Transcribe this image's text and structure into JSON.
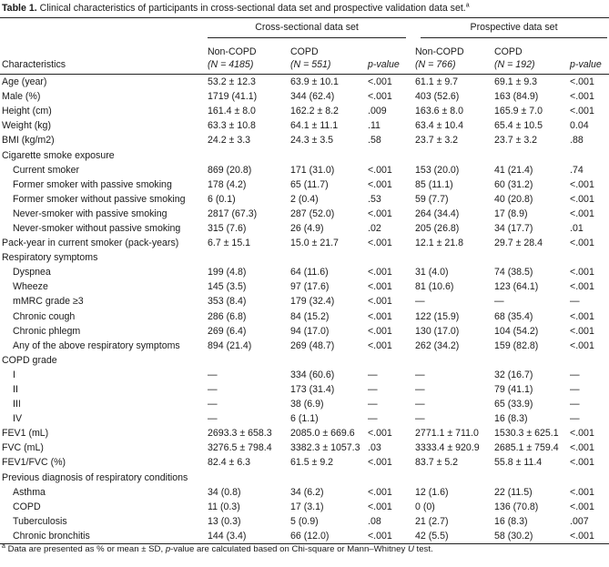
{
  "title": {
    "label": "Table 1.",
    "text": "Clinical characteristics of participants in cross-sectional data set and prospective validation data set.",
    "marker": "a"
  },
  "groups": {
    "cross": "Cross-sectional data set",
    "prospective": "Prospective data set"
  },
  "columns": {
    "characteristics": "Characteristics",
    "cs_noncopd": "Non-COPD",
    "cs_noncopd_n": "(N = 4185)",
    "cs_copd": "COPD",
    "cs_copd_n": "(N = 551)",
    "cs_p": "p-value",
    "pr_noncopd": "Non-COPD",
    "pr_noncopd_n": "(N = 766)",
    "pr_copd": "COPD",
    "pr_copd_n": "(N = 192)",
    "pr_p": "p-value"
  },
  "rows": [
    {
      "label": "Age (year)",
      "indent": false,
      "c": [
        "53.2 ± 12.3",
        "63.9 ± 10.1",
        "<.001",
        "61.1 ± 9.7",
        "69.1 ± 9.3",
        "<.001"
      ]
    },
    {
      "label": "Male (%)",
      "indent": false,
      "c": [
        "1719 (41.1)",
        "344 (62.4)",
        "<.001",
        "403 (52.6)",
        "163 (84.9)",
        "<.001"
      ]
    },
    {
      "label": "Height (cm)",
      "indent": false,
      "c": [
        "161.4 ± 8.0",
        "162.2 ± 8.2",
        ".009",
        "163.6 ± 8.0",
        "165.9 ± 7.0",
        "<.001"
      ]
    },
    {
      "label": "Weight (kg)",
      "indent": false,
      "c": [
        "63.3 ± 10.8",
        "64.1 ± 11.1",
        ".11",
        "63.4 ± 10.4",
        "65.4 ± 10.5",
        "0.04"
      ]
    },
    {
      "label": "BMI (kg/m2)",
      "indent": false,
      "c": [
        "24.2 ± 3.3",
        "24.3 ± 3.5",
        ".58",
        "23.7 ± 3.2",
        "23.7 ± 3.2",
        ".88"
      ]
    },
    {
      "label": "Cigarette smoke exposure",
      "indent": false,
      "c": [
        "",
        "",
        "",
        "",
        "",
        ""
      ]
    },
    {
      "label": "Current smoker",
      "indent": true,
      "c": [
        "869 (20.8)",
        "171 (31.0)",
        "<.001",
        "153 (20.0)",
        "41 (21.4)",
        ".74"
      ]
    },
    {
      "label": "Former smoker with passive smoking",
      "indent": true,
      "c": [
        "178 (4.2)",
        "65 (11.7)",
        "<.001",
        "85 (11.1)",
        "60 (31.2)",
        "<.001"
      ]
    },
    {
      "label": "Former smoker without passive smoking",
      "indent": true,
      "c": [
        "6 (0.1)",
        "2 (0.4)",
        ".53",
        "59 (7.7)",
        "40 (20.8)",
        "<.001"
      ]
    },
    {
      "label": "Never-smoker with passive smoking",
      "indent": true,
      "c": [
        "2817 (67.3)",
        "287 (52.0)",
        "<.001",
        "264 (34.4)",
        "17 (8.9)",
        "<.001"
      ]
    },
    {
      "label": "Never-smoker without passive smoking",
      "indent": true,
      "c": [
        "315 (7.6)",
        "26 (4.9)",
        ".02",
        "205 (26.8)",
        "34 (17.7)",
        ".01"
      ]
    },
    {
      "label": "Pack-year in current smoker (pack-years)",
      "indent": false,
      "c": [
        "6.7 ± 15.1",
        "15.0 ± 21.7",
        "<.001",
        "12.1 ± 21.8",
        "29.7 ± 28.4",
        "<.001"
      ]
    },
    {
      "label": "Respiratory symptoms",
      "indent": false,
      "c": [
        "",
        "",
        "",
        "",
        "",
        ""
      ]
    },
    {
      "label": "Dyspnea",
      "indent": true,
      "c": [
        "199 (4.8)",
        "64 (11.6)",
        "<.001",
        "31 (4.0)",
        "74 (38.5)",
        "<.001"
      ]
    },
    {
      "label": "Wheeze",
      "indent": true,
      "c": [
        "145 (3.5)",
        "97 (17.6)",
        "<.001",
        "81 (10.6)",
        "123 (64.1)",
        "<.001"
      ]
    },
    {
      "label": "mMRC grade ≥3",
      "indent": true,
      "c": [
        "353 (8.4)",
        "179 (32.4)",
        "<.001",
        "—",
        "—",
        "—"
      ]
    },
    {
      "label": "Chronic cough",
      "indent": true,
      "c": [
        "286 (6.8)",
        "84 (15.2)",
        "<.001",
        "122 (15.9)",
        "68 (35.4)",
        "<.001"
      ]
    },
    {
      "label": "Chronic phlegm",
      "indent": true,
      "c": [
        "269 (6.4)",
        "94 (17.0)",
        "<.001",
        "130 (17.0)",
        "104 (54.2)",
        "<.001"
      ]
    },
    {
      "label": "Any of the above respiratory symptoms",
      "indent": true,
      "c": [
        "894 (21.4)",
        "269 (48.7)",
        "<.001",
        "262 (34.2)",
        "159 (82.8)",
        "<.001"
      ]
    },
    {
      "label": "COPD grade",
      "indent": false,
      "c": [
        "",
        "",
        "",
        "",
        "",
        ""
      ]
    },
    {
      "label": "I",
      "indent": true,
      "c": [
        "—",
        "334 (60.6)",
        "—",
        "—",
        "32 (16.7)",
        "—"
      ]
    },
    {
      "label": "II",
      "indent": true,
      "c": [
        "—",
        "173 (31.4)",
        "—",
        "—",
        "79 (41.1)",
        "—"
      ]
    },
    {
      "label": "III",
      "indent": true,
      "c": [
        "—",
        "38 (6.9)",
        "—",
        "—",
        "65 (33.9)",
        "—"
      ]
    },
    {
      "label": "IV",
      "indent": true,
      "c": [
        "—",
        "6 (1.1)",
        "—",
        "—",
        "16 (8.3)",
        "—"
      ]
    },
    {
      "label": "FEV1 (mL)",
      "indent": false,
      "c": [
        "2693.3 ± 658.3",
        "2085.0 ± 669.6",
        "<.001",
        "2771.1 ± 711.0",
        "1530.3 ± 625.1",
        "<.001"
      ]
    },
    {
      "label": "FVC (mL)",
      "indent": false,
      "c": [
        "3276.5 ± 798.4",
        "3382.3 ± 1057.3",
        ".03",
        "3333.4 ± 920.9",
        "2685.1 ± 759.4",
        "<.001"
      ]
    },
    {
      "label": "FEV1/FVC (%)",
      "indent": false,
      "c": [
        "82.4 ± 6.3",
        "61.5 ± 9.2",
        "<.001",
        "83.7 ± 5.2",
        "55.8 ± 11.4",
        "<.001"
      ]
    },
    {
      "label": "Previous diagnosis of respiratory conditions",
      "indent": false,
      "c": [
        "",
        "",
        "",
        "",
        "",
        ""
      ]
    },
    {
      "label": "Asthma",
      "indent": true,
      "c": [
        "34 (0.8)",
        "34 (6.2)",
        "<.001",
        "12 (1.6)",
        "22 (11.5)",
        "<.001"
      ]
    },
    {
      "label": "COPD",
      "indent": true,
      "c": [
        "11 (0.3)",
        "17 (3.1)",
        "<.001",
        "0 (0)",
        "136 (70.8)",
        "<.001"
      ]
    },
    {
      "label": "Tuberculosis",
      "indent": true,
      "c": [
        "13 (0.3)",
        "5 (0.9)",
        ".08",
        "21 (2.7)",
        "16 (8.3)",
        ".007"
      ]
    },
    {
      "label": "Chronic bronchitis",
      "indent": true,
      "c": [
        "144 (3.4)",
        "66 (12.0)",
        "<.001",
        "42 (5.5)",
        "58 (30.2)",
        "<.001"
      ]
    }
  ],
  "footnote": {
    "marker": "a",
    "text_a": "Data are presented as % or mean ± SD, ",
    "p": "p",
    "text_b": "-value are calculated based on Chi-square or Mann–Whitney ",
    "u": "U",
    "text_c": " test."
  }
}
